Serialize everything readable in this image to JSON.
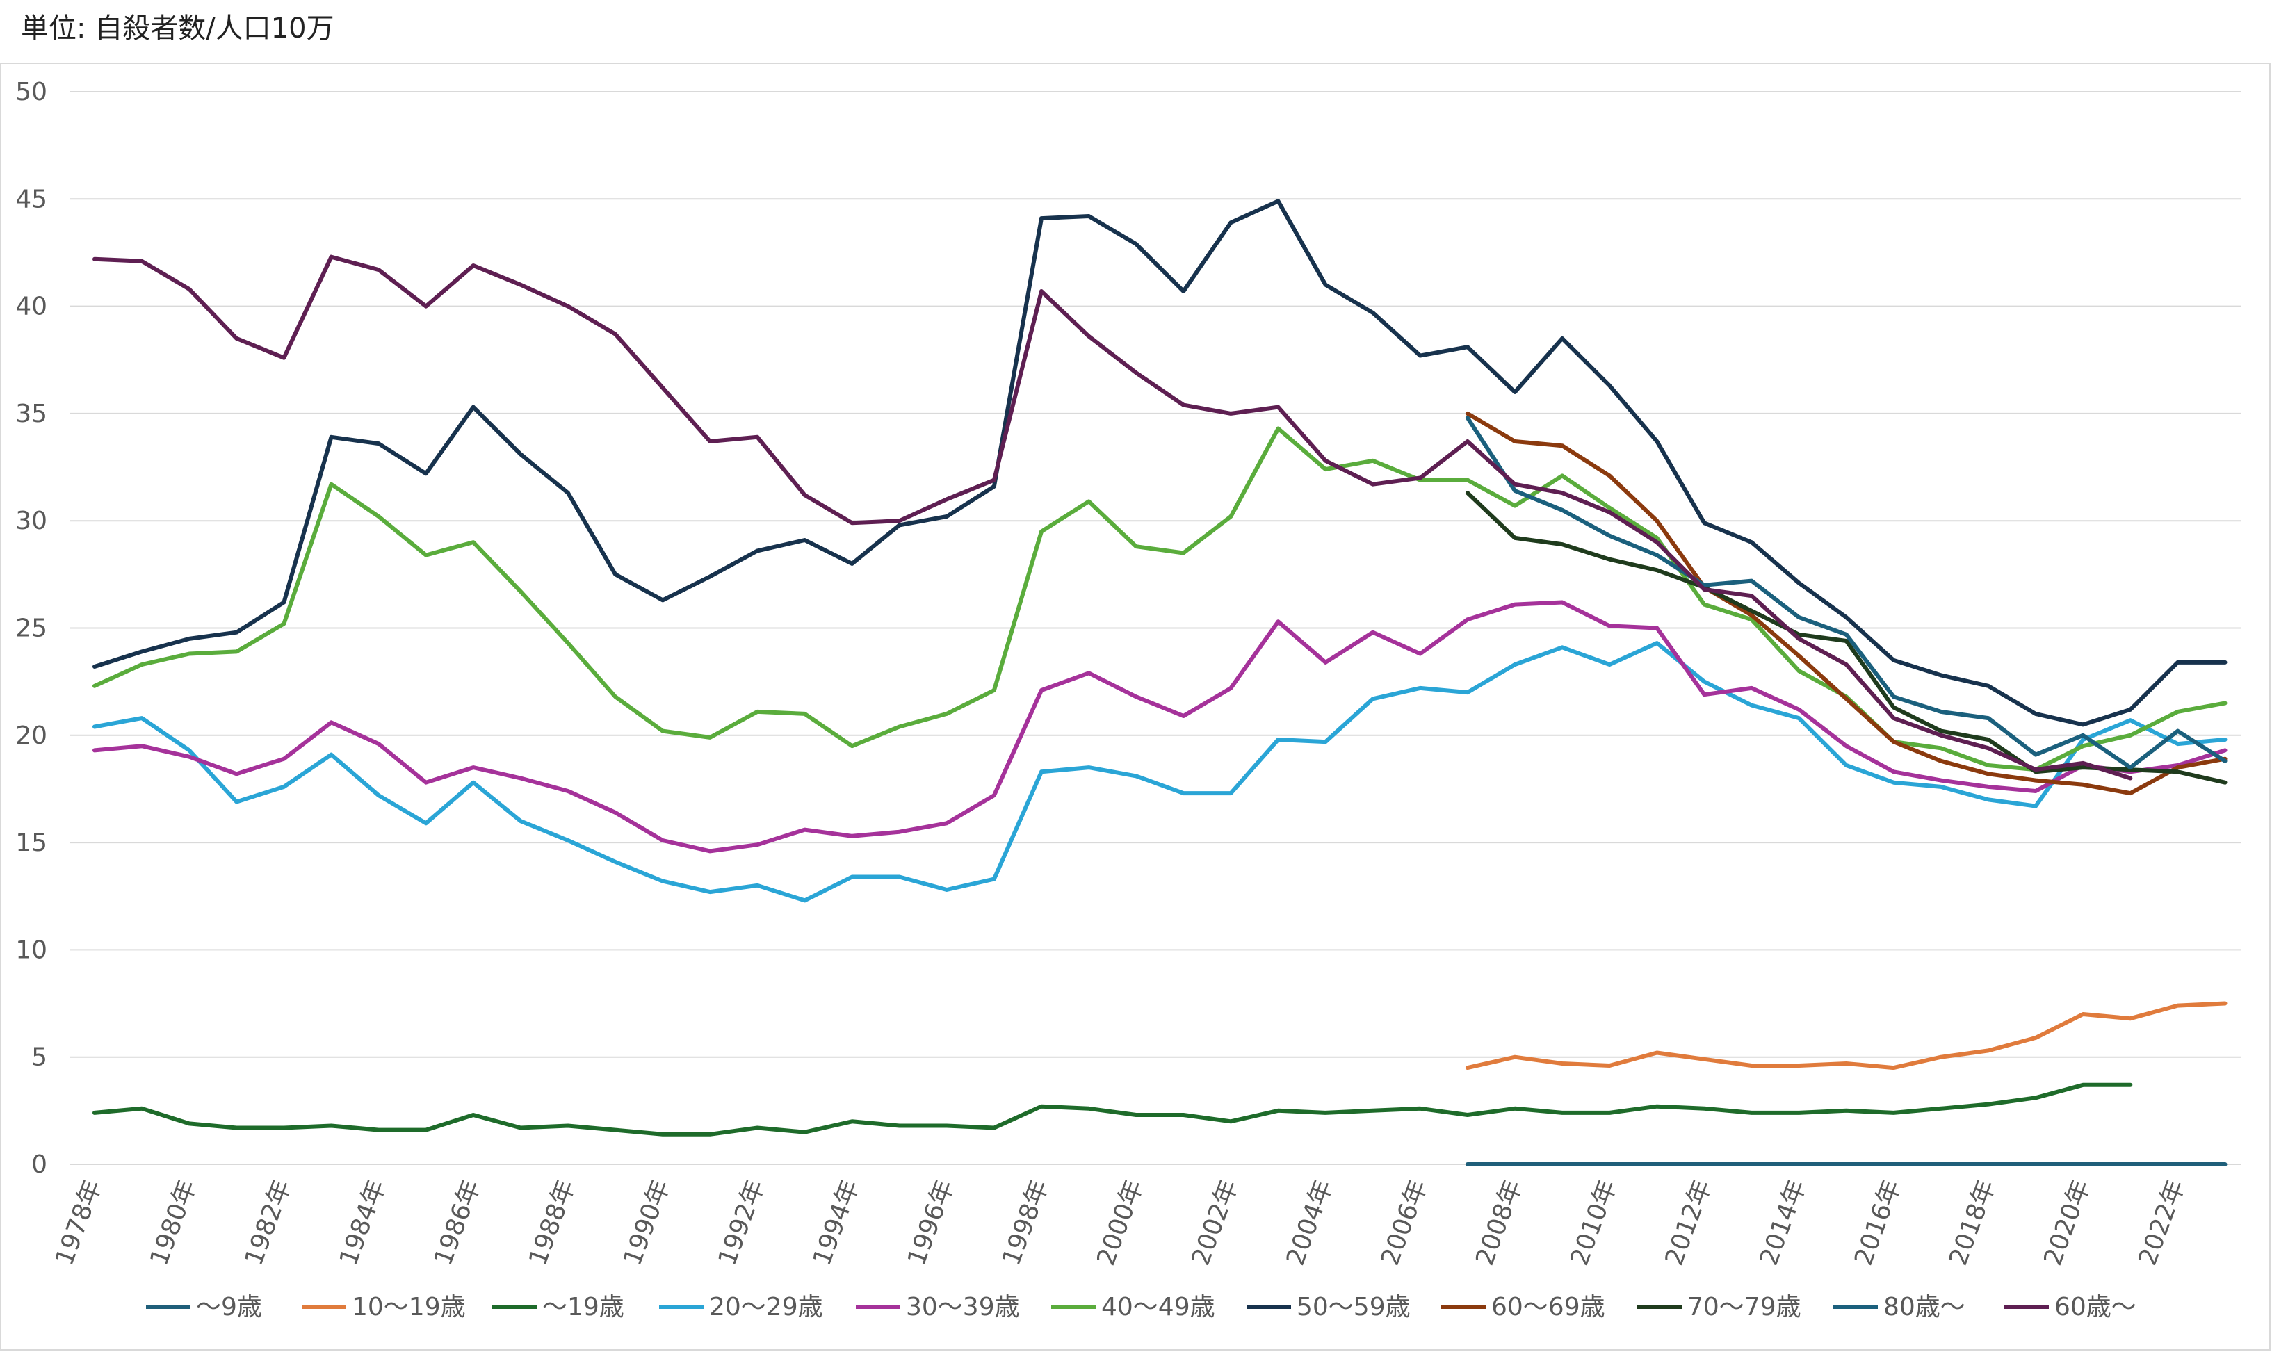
{
  "unit_label": "単位: 自殺者数/人口10万",
  "chart_data": {
    "type": "line",
    "ylim": [
      0,
      50
    ],
    "yticks": [
      "0",
      "5",
      "10",
      "15",
      "20",
      "25",
      "30",
      "35",
      "40",
      "45",
      "50"
    ],
    "grid": true,
    "legend_position": "bottom",
    "x": [
      1978,
      1979,
      1980,
      1981,
      1982,
      1983,
      1984,
      1985,
      1986,
      1987,
      1988,
      1989,
      1990,
      1991,
      1992,
      1993,
      1994,
      1995,
      1996,
      1997,
      1998,
      1999,
      2000,
      2001,
      2002,
      2003,
      2004,
      2005,
      2006,
      2007,
      2008,
      2009,
      2010,
      2011,
      2012,
      2013,
      2014,
      2015,
      2016,
      2017,
      2018,
      2019,
      2020,
      2021,
      2022,
      2023
    ],
    "x_tick_labels": [
      "1978年",
      "1980年",
      "1982年",
      "1984年",
      "1986年",
      "1988年",
      "1990年",
      "1992年",
      "1994年",
      "1996年",
      "1998年",
      "2000年",
      "2002年",
      "2004年",
      "2006年",
      "2008年",
      "2010年",
      "2012年",
      "2014年",
      "2016年",
      "2018年",
      "2020年",
      "2022年"
    ],
    "series": [
      {
        "name": "〜9歳",
        "color": "#1f5f7a",
        "values": [
          null,
          null,
          null,
          null,
          null,
          null,
          null,
          null,
          null,
          null,
          null,
          null,
          null,
          null,
          null,
          null,
          null,
          null,
          null,
          null,
          null,
          null,
          null,
          null,
          null,
          null,
          null,
          null,
          null,
          0,
          0,
          0,
          0,
          0,
          0,
          0,
          0,
          0,
          0,
          0,
          0,
          0,
          0,
          0,
          0,
          0
        ]
      },
      {
        "name": "10〜19歳",
        "color": "#e07b3c",
        "values": [
          null,
          null,
          null,
          null,
          null,
          null,
          null,
          null,
          null,
          null,
          null,
          null,
          null,
          null,
          null,
          null,
          null,
          null,
          null,
          null,
          null,
          null,
          null,
          null,
          null,
          null,
          null,
          null,
          null,
          4.5,
          5.0,
          4.7,
          4.6,
          5.2,
          4.9,
          4.6,
          4.6,
          4.7,
          4.5,
          5.0,
          5.3,
          5.9,
          7.0,
          6.8,
          7.4,
          7.5
        ]
      },
      {
        "name": "〜19歳",
        "color": "#1e6b2a",
        "values": [
          2.4,
          2.6,
          1.9,
          1.7,
          1.7,
          1.8,
          1.6,
          1.6,
          2.3,
          1.7,
          1.8,
          1.6,
          1.4,
          1.4,
          1.7,
          1.5,
          2.0,
          1.8,
          1.8,
          1.7,
          2.7,
          2.6,
          2.3,
          2.3,
          2.0,
          2.5,
          2.4,
          2.5,
          2.6,
          2.3,
          2.6,
          2.4,
          2.4,
          2.7,
          2.6,
          2.4,
          2.4,
          2.5,
          2.4,
          2.6,
          2.8,
          3.1,
          3.7,
          3.7,
          null,
          null
        ]
      },
      {
        "name": "20〜29歳",
        "color": "#2aa5d6",
        "values": [
          20.4,
          20.8,
          19.3,
          16.9,
          17.6,
          19.1,
          17.2,
          15.9,
          17.8,
          16.0,
          15.1,
          14.1,
          13.2,
          12.7,
          13.0,
          12.3,
          13.4,
          13.4,
          12.8,
          13.3,
          18.3,
          18.5,
          18.1,
          17.3,
          17.3,
          19.8,
          19.7,
          21.7,
          22.2,
          22.0,
          23.3,
          24.1,
          23.3,
          24.3,
          22.5,
          21.4,
          20.8,
          18.6,
          17.8,
          17.6,
          17.0,
          16.7,
          19.8,
          20.7,
          19.6,
          19.8
        ]
      },
      {
        "name": "30〜39歳",
        "color": "#a5329a",
        "values": [
          19.3,
          19.5,
          19.0,
          18.2,
          18.9,
          20.6,
          19.6,
          17.8,
          18.5,
          18.0,
          17.4,
          16.4,
          15.1,
          14.6,
          14.9,
          15.6,
          15.3,
          15.5,
          15.9,
          17.2,
          22.1,
          22.9,
          21.8,
          20.9,
          22.2,
          25.3,
          23.4,
          24.8,
          23.8,
          25.4,
          26.1,
          26.2,
          25.1,
          25.0,
          21.9,
          22.2,
          21.2,
          19.5,
          18.3,
          17.9,
          17.6,
          17.4,
          18.6,
          18.3,
          18.6,
          19.3
        ]
      },
      {
        "name": "40〜49歳",
        "color": "#5aac3c",
        "values": [
          22.3,
          23.3,
          23.8,
          23.9,
          25.2,
          31.7,
          30.2,
          28.4,
          29.0,
          26.7,
          24.3,
          21.8,
          20.2,
          19.9,
          21.1,
          21.0,
          19.5,
          20.4,
          21.0,
          22.1,
          29.5,
          30.9,
          28.8,
          28.5,
          30.2,
          34.3,
          32.4,
          32.8,
          31.9,
          31.9,
          30.7,
          32.1,
          30.6,
          29.2,
          26.1,
          25.4,
          23.0,
          21.8,
          19.7,
          19.4,
          18.6,
          18.4,
          19.5,
          20.0,
          21.1,
          21.5
        ]
      },
      {
        "name": "50〜59歳",
        "color": "#17324d",
        "values": [
          23.2,
          23.9,
          24.5,
          24.8,
          26.2,
          33.9,
          33.6,
          32.2,
          35.3,
          33.1,
          31.3,
          27.5,
          26.3,
          27.4,
          28.6,
          29.1,
          28.0,
          29.8,
          30.2,
          31.6,
          44.1,
          44.2,
          42.9,
          40.7,
          43.9,
          44.9,
          41.0,
          39.7,
          37.7,
          38.1,
          36.0,
          38.5,
          36.3,
          33.7,
          29.9,
          29.0,
          27.1,
          25.5,
          23.5,
          22.8,
          22.3,
          21.0,
          20.5,
          21.2,
          23.4,
          23.4
        ]
      },
      {
        "name": "60〜69歳",
        "color": "#8b3a0e",
        "values": [
          null,
          null,
          null,
          null,
          null,
          null,
          null,
          null,
          null,
          null,
          null,
          null,
          null,
          null,
          null,
          null,
          null,
          null,
          null,
          null,
          null,
          null,
          null,
          null,
          null,
          null,
          null,
          null,
          null,
          35.0,
          33.7,
          33.5,
          32.1,
          30.0,
          26.9,
          25.6,
          23.7,
          21.7,
          19.7,
          18.8,
          18.2,
          17.9,
          17.7,
          17.3,
          18.5,
          18.9
        ]
      },
      {
        "name": "70〜79歳",
        "color": "#1f3b1d",
        "values": [
          null,
          null,
          null,
          null,
          null,
          null,
          null,
          null,
          null,
          null,
          null,
          null,
          null,
          null,
          null,
          null,
          null,
          null,
          null,
          null,
          null,
          null,
          null,
          null,
          null,
          null,
          null,
          null,
          null,
          31.3,
          29.2,
          28.9,
          28.2,
          27.7,
          26.9,
          25.8,
          24.7,
          24.4,
          21.3,
          20.2,
          19.8,
          18.3,
          18.5,
          18.4,
          18.3,
          17.8
        ]
      },
      {
        "name": "80歳〜",
        "color": "#1b607d",
        "values": [
          null,
          null,
          null,
          null,
          null,
          null,
          null,
          null,
          null,
          null,
          null,
          null,
          null,
          null,
          null,
          null,
          null,
          null,
          null,
          null,
          null,
          null,
          null,
          null,
          null,
          null,
          null,
          null,
          null,
          34.8,
          31.4,
          30.5,
          29.3,
          28.4,
          27.0,
          27.2,
          25.5,
          24.7,
          21.8,
          21.1,
          20.8,
          19.1,
          20.0,
          18.5,
          20.2,
          18.8
        ]
      },
      {
        "name": "60歳〜",
        "color": "#5e1f52",
        "values": [
          42.2,
          42.1,
          40.8,
          38.5,
          37.6,
          42.3,
          41.7,
          40.0,
          41.9,
          41.0,
          40.0,
          38.7,
          36.2,
          33.7,
          33.9,
          31.2,
          29.9,
          30.0,
          31.0,
          31.9,
          40.7,
          38.6,
          36.9,
          35.4,
          35.0,
          35.3,
          32.8,
          31.7,
          32.0,
          33.7,
          31.7,
          31.3,
          30.4,
          29.0,
          26.8,
          26.5,
          24.5,
          23.3,
          20.8,
          20.0,
          19.4,
          18.4,
          18.7,
          18.0,
          null,
          null
        ]
      }
    ]
  }
}
